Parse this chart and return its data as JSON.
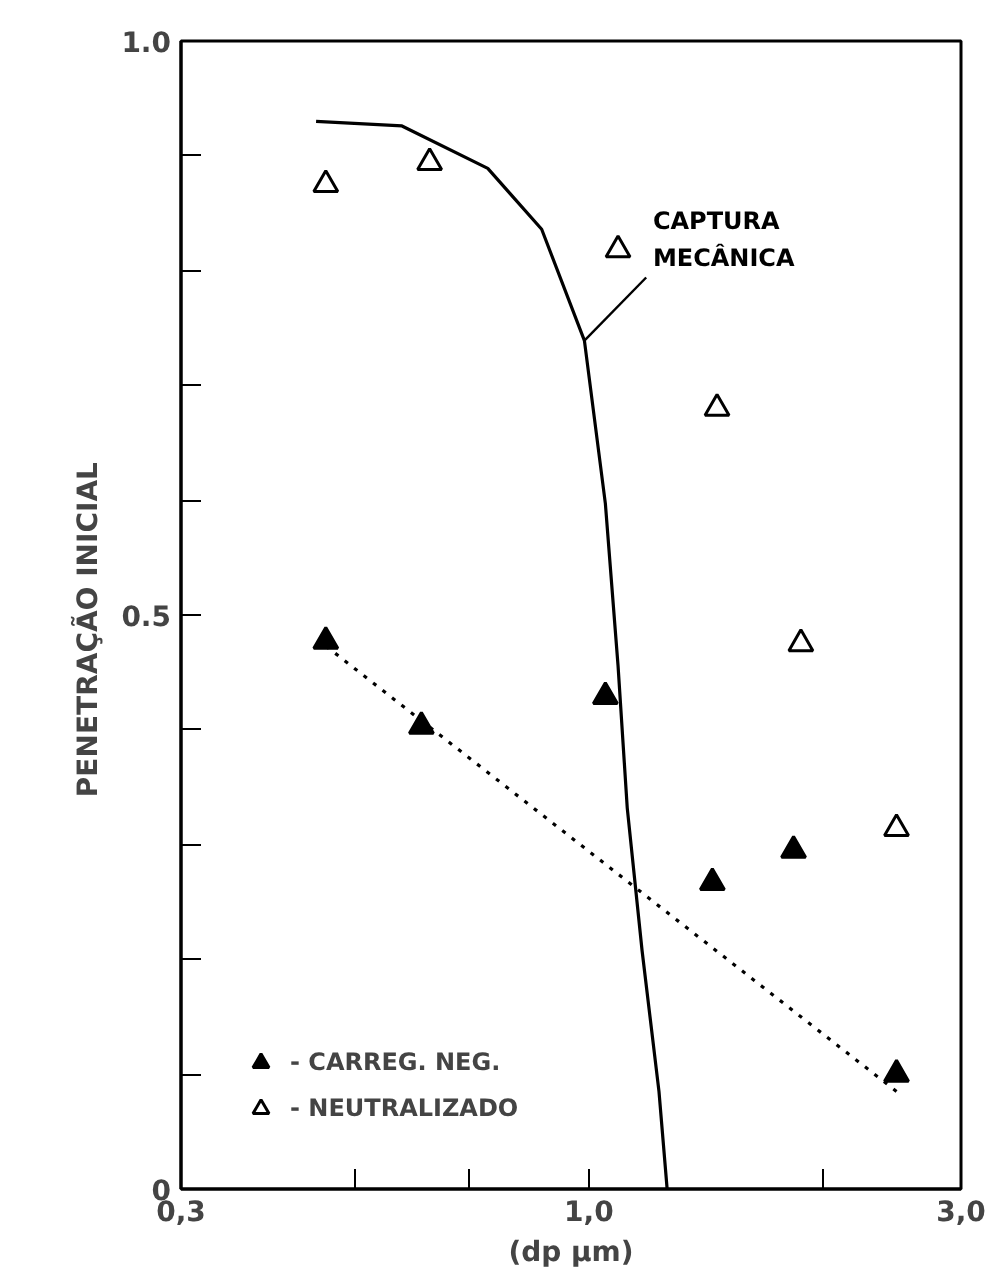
{
  "chart_data": {
    "type": "scatter",
    "xlabel": "(dp µm)",
    "ylabel": "PENETRAÇÃO    INICIAL",
    "log": "x",
    "xlim": [
      0.3,
      3.0
    ],
    "ylim": [
      0,
      1.0
    ],
    "xticks": [
      {
        "value": 0.3,
        "label": "0,3"
      },
      {
        "value": 0.5,
        "label": null
      },
      {
        "value": 0.7,
        "label": null
      },
      {
        "value": 1.0,
        "label": "1,0"
      },
      {
        "value": 2.0,
        "label": null
      },
      {
        "value": 3.0,
        "label": "3,0"
      }
    ],
    "yticks": [
      0,
      {
        "value": 0.1,
        "label": null
      },
      {
        "value": 0.2,
        "label": null
      },
      {
        "value": 0.3,
        "label": null
      },
      {
        "value": 0.4,
        "label": null
      },
      {
        "value": 0.5,
        "label": "0.5"
      },
      {
        "value": 0.6,
        "label": null
      },
      {
        "value": 0.7,
        "label": null
      },
      {
        "value": 0.8,
        "label": null
      },
      {
        "value": 0.9,
        "label": null
      },
      {
        "value": 1.0,
        "label": "1.0"
      }
    ],
    "grid": false,
    "legend": "bottom left",
    "series": [
      {
        "name": "- CARREG. NEG.",
        "color": "#000000",
        "marker": "triangle",
        "x": [
          0.46,
          0.61,
          1.05,
          1.44,
          1.83,
          2.48
        ],
        "values": [
          0.477,
          0.403,
          0.429,
          0.267,
          0.295,
          0.1
        ]
      },
      {
        "name": "- NEUTRALIZADO",
        "color": "#ffffff",
        "marker": "triangle",
        "x": [
          0.46,
          0.625,
          1.09,
          1.46,
          1.87,
          2.48
        ],
        "values": [
          0.875,
          0.894,
          0.818,
          0.68,
          0.475,
          0.314
        ]
      },
      {
        "type": "line",
        "color": "#000000",
        "line_style": "dotted",
        "x": [
          0.46,
          2.48
        ],
        "values": [
          0.473,
          0.085
        ]
      },
      {
        "type": "line",
        "color": "#000000",
        "line_style": "solid",
        "x": [
          0.447,
          0.576,
          0.742,
          0.87,
          0.987,
          1.05,
          1.09,
          1.12,
          1.17,
          1.23,
          1.26
        ],
        "values": [
          0.93,
          0.926,
          0.889,
          0.836,
          0.739,
          0.597,
          0.456,
          0.332,
          0.208,
          0.085,
          0
        ]
      }
    ],
    "annotations": [
      {
        "text": "CAPTURA\nMECÂNICA",
        "x": 0.987,
        "y": 0.739
      }
    ]
  }
}
